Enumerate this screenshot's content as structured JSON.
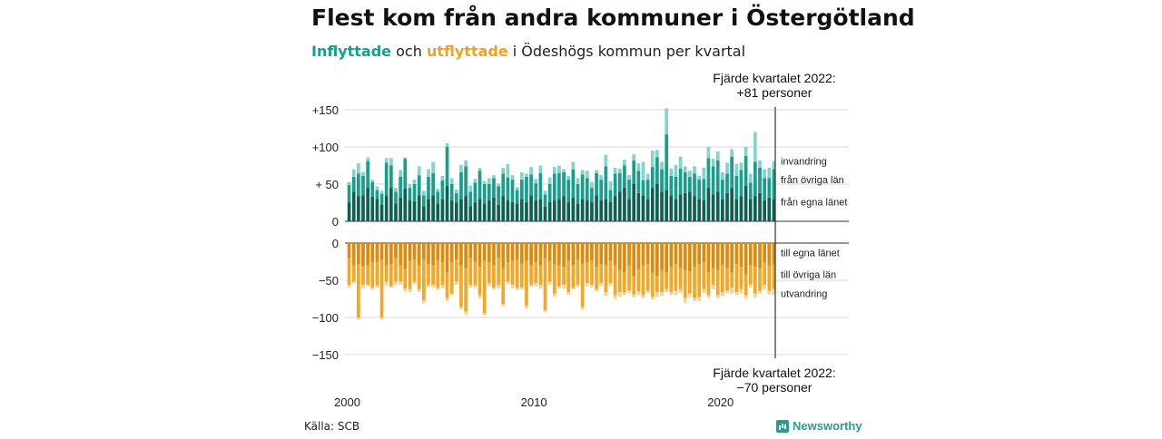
{
  "title": "Flest kom från andra kommuner i Östergötland",
  "subtitle": {
    "in_label": "Inflyttade",
    "and": " och ",
    "out_label": "utflyttade",
    "rest": " i Ödeshögs kommun per kvartal"
  },
  "source": "Källa: SCB",
  "brand": "Newsworthy",
  "colors": {
    "in_egna": "#0f5f52",
    "in_ovriga": "#1a9e8c",
    "in_invandring": "#86d3c8",
    "out_egna": "#e08a0d",
    "out_ovriga": "#f5a623",
    "out_utvandring": "#f7d494"
  },
  "chart_data": {
    "type": "bar",
    "stacked": true,
    "grid": true,
    "x_ticks": [
      "2000",
      "2010",
      "2020"
    ],
    "y_ticks_top": [
      "+150",
      "+100",
      "+ 50",
      "0"
    ],
    "y_ticks_bottom": [
      "0",
      "−50",
      "−100",
      "−150"
    ],
    "ylim_top": [
      0,
      150
    ],
    "ylim_bottom": [
      -150,
      0
    ],
    "annotation_top": [
      "Fjärde kvartalet 2022:",
      "+81 personer"
    ],
    "annotation_bottom": [
      "Fjärde kvartalet 2022:",
      "−70 personer"
    ],
    "series_labels_in": [
      "invandring",
      "från övriga län",
      "från egna länet"
    ],
    "series_labels_out": [
      "till egna länet",
      "till övriga län",
      "utvandring"
    ],
    "x": [
      "2000Q1",
      "2000Q2",
      "2000Q3",
      "2000Q4",
      "2001Q1",
      "2001Q2",
      "2001Q3",
      "2001Q4",
      "2002Q1",
      "2002Q2",
      "2002Q3",
      "2002Q4",
      "2003Q1",
      "2003Q2",
      "2003Q3",
      "2003Q4",
      "2004Q1",
      "2004Q2",
      "2004Q3",
      "2004Q4",
      "2005Q1",
      "2005Q2",
      "2005Q3",
      "2005Q4",
      "2006Q1",
      "2006Q2",
      "2006Q3",
      "2006Q4",
      "2007Q1",
      "2007Q2",
      "2007Q3",
      "2007Q4",
      "2008Q1",
      "2008Q2",
      "2008Q3",
      "2008Q4",
      "2009Q1",
      "2009Q2",
      "2009Q3",
      "2009Q4",
      "2010Q1",
      "2010Q2",
      "2010Q3",
      "2010Q4",
      "2011Q1",
      "2011Q2",
      "2011Q3",
      "2011Q4",
      "2012Q1",
      "2012Q2",
      "2012Q3",
      "2012Q4",
      "2013Q1",
      "2013Q2",
      "2013Q3",
      "2013Q4",
      "2014Q1",
      "2014Q2",
      "2014Q3",
      "2014Q4",
      "2015Q1",
      "2015Q2",
      "2015Q3",
      "2015Q4",
      "2016Q1",
      "2016Q2",
      "2016Q3",
      "2016Q4",
      "2017Q1",
      "2017Q2",
      "2017Q3",
      "2017Q4",
      "2018Q1",
      "2018Q2",
      "2018Q3",
      "2018Q4",
      "2019Q1",
      "2019Q2",
      "2019Q3",
      "2019Q4",
      "2020Q1",
      "2020Q2",
      "2020Q3",
      "2020Q4",
      "2021Q1",
      "2021Q2",
      "2021Q3",
      "2021Q4",
      "2022Q1",
      "2022Q2",
      "2022Q3",
      "2022Q4"
    ],
    "in_egna": [
      25,
      40,
      34,
      35,
      45,
      33,
      30,
      22,
      35,
      45,
      24,
      32,
      44,
      28,
      27,
      35,
      20,
      30,
      35,
      24,
      30,
      48,
      28,
      25,
      30,
      34,
      20,
      26,
      30,
      24,
      28,
      32,
      22,
      34,
      28,
      26,
      24,
      30,
      26,
      35,
      28,
      30,
      20,
      26,
      28,
      30,
      34,
      26,
      32,
      24,
      30,
      28,
      26,
      35,
      28,
      30,
      26,
      34,
      40,
      45,
      30,
      50,
      38,
      35,
      30,
      45,
      50,
      40,
      42,
      35,
      30,
      36,
      38,
      40,
      34,
      30,
      28,
      45,
      36,
      40,
      30,
      38,
      45,
      30,
      34,
      48,
      30,
      34,
      38,
      28,
      32,
      30
    ],
    "in_ovriga": [
      24,
      20,
      30,
      26,
      36,
      20,
      12,
      15,
      44,
      30,
      16,
      28,
      40,
      17,
      23,
      27,
      15,
      30,
      30,
      16,
      25,
      52,
      22,
      13,
      36,
      40,
      20,
      26,
      38,
      26,
      22,
      26,
      25,
      30,
      31,
      30,
      18,
      26,
      34,
      28,
      23,
      35,
      16,
      24,
      36,
      35,
      32,
      30,
      38,
      26,
      33,
      30,
      19,
      30,
      28,
      44,
      16,
      30,
      25,
      30,
      26,
      32,
      30,
      20,
      26,
      28,
      36,
      30,
      75,
      26,
      30,
      35,
      28,
      20,
      30,
      26,
      29,
      40,
      38,
      42,
      26,
      26,
      42,
      31,
      35,
      40,
      22,
      46,
      34,
      30,
      26,
      40
    ],
    "in_invandring": [
      4,
      10,
      14,
      5,
      5,
      3,
      5,
      4,
      6,
      10,
      5,
      9,
      2,
      5,
      6,
      12,
      6,
      10,
      15,
      4,
      6,
      5,
      8,
      5,
      10,
      8,
      8,
      5,
      4,
      4,
      8,
      4,
      4,
      8,
      18,
      6,
      4,
      10,
      4,
      10,
      6,
      10,
      5,
      9,
      9,
      10,
      4,
      5,
      10,
      8,
      6,
      10,
      8,
      4,
      6,
      15,
      12,
      8,
      6,
      8,
      6,
      8,
      10,
      25,
      8,
      22,
      10,
      10,
      35,
      10,
      16,
      16,
      8,
      8,
      10,
      5,
      15,
      15,
      10,
      12,
      10,
      15,
      10,
      16,
      10,
      12,
      12,
      40,
      10,
      12,
      14,
      11
    ],
    "out_egna": [
      20,
      30,
      28,
      32,
      30,
      26,
      25,
      22,
      30,
      28,
      20,
      30,
      35,
      24,
      22,
      30,
      22,
      28,
      30,
      24,
      26,
      40,
      26,
      22,
      30,
      34,
      20,
      25,
      32,
      24,
      26,
      30,
      20,
      34,
      26,
      24,
      22,
      28,
      24,
      30,
      26,
      30,
      20,
      24,
      28,
      30,
      32,
      24,
      30,
      22,
      28,
      26,
      24,
      32,
      28,
      30,
      24,
      30,
      36,
      40,
      30,
      45,
      35,
      30,
      28,
      40,
      44,
      36,
      40,
      32,
      28,
      34,
      36,
      38,
      32,
      28,
      26,
      40,
      34,
      36,
      30,
      34,
      40,
      28,
      32,
      42,
      30,
      32,
      34,
      26,
      30,
      30
    ],
    "out_ovriga": [
      36,
      22,
      72,
      24,
      26,
      34,
      32,
      78,
      22,
      30,
      32,
      22,
      26,
      38,
      30,
      32,
      55,
      28,
      26,
      36,
      30,
      34,
      42,
      30,
      56,
      58,
      36,
      32,
      38,
      70,
      28,
      30,
      36,
      48,
      26,
      32,
      38,
      32,
      60,
      26,
      28,
      26,
      70,
      28,
      40,
      28,
      24,
      42,
      30,
      34,
      58,
      28,
      32,
      30,
      26,
      36,
      30,
      40,
      30,
      26,
      34,
      24,
      30,
      40,
      36,
      32,
      22,
      30,
      22,
      34,
      36,
      28,
      38,
      30,
      42,
      44,
      36,
      30,
      22,
      34,
      36,
      30,
      20,
      38,
      30,
      28,
      26,
      36,
      30,
      30,
      34,
      32
    ],
    "out_utvandring": [
      4,
      2,
      3,
      5,
      2,
      3,
      3,
      3,
      5,
      2,
      4,
      4,
      4,
      4,
      3,
      4,
      4,
      3,
      4,
      3,
      5,
      4,
      2,
      4,
      3,
      4,
      4,
      3,
      4,
      3,
      4,
      2,
      5,
      3,
      3,
      5,
      3,
      2,
      4,
      3,
      4,
      5,
      3,
      4,
      4,
      3,
      5,
      4,
      2,
      3,
      3,
      4,
      4,
      3,
      4,
      5,
      3,
      5,
      6,
      4,
      3,
      4,
      5,
      4,
      3,
      4,
      6,
      5,
      4,
      4,
      6,
      5,
      7,
      5,
      4,
      6,
      5,
      4,
      6,
      4,
      5,
      4,
      8,
      4,
      6,
      5,
      4,
      5,
      4,
      6,
      5,
      8
    ]
  }
}
